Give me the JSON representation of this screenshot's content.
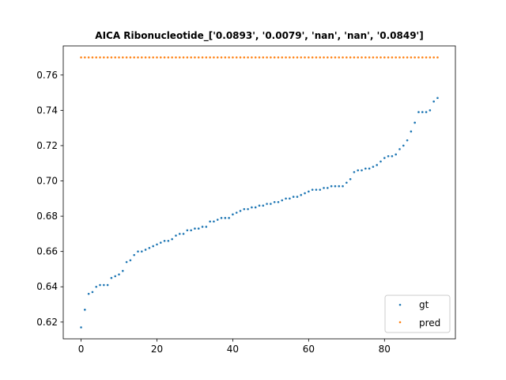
{
  "chart_data": {
    "type": "scatter",
    "title": "AICA Ribonucleotide_['0.0893', '0.0079', 'nan', 'nan', '0.0849']",
    "xlabel": "",
    "ylabel": "",
    "xlim": [
      -4.7,
      98.7
    ],
    "ylim": [
      0.6105,
      0.7765
    ],
    "x_ticks": [
      0,
      20,
      40,
      60,
      80
    ],
    "y_ticks": [
      0.62,
      0.64,
      0.66,
      0.68,
      0.7,
      0.72,
      0.74,
      0.76
    ],
    "grid": false,
    "legend_position": "lower-right",
    "x": [
      0,
      1,
      2,
      3,
      4,
      5,
      6,
      7,
      8,
      9,
      10,
      11,
      12,
      13,
      14,
      15,
      16,
      17,
      18,
      19,
      20,
      21,
      22,
      23,
      24,
      25,
      26,
      27,
      28,
      29,
      30,
      31,
      32,
      33,
      34,
      35,
      36,
      37,
      38,
      39,
      40,
      41,
      42,
      43,
      44,
      45,
      46,
      47,
      48,
      49,
      50,
      51,
      52,
      53,
      54,
      55,
      56,
      57,
      58,
      59,
      60,
      61,
      62,
      63,
      64,
      65,
      66,
      67,
      68,
      69,
      70,
      71,
      72,
      73,
      74,
      75,
      76,
      77,
      78,
      79,
      80,
      81,
      82,
      83,
      84,
      85,
      86,
      87,
      88,
      89,
      90,
      91,
      92,
      93,
      94
    ],
    "series": [
      {
        "name": "gt",
        "color": "#1f77b4",
        "values": [
          0.617,
          0.627,
          0.636,
          0.637,
          0.64,
          0.641,
          0.641,
          0.641,
          0.645,
          0.646,
          0.647,
          0.649,
          0.654,
          0.655,
          0.658,
          0.66,
          0.66,
          0.661,
          0.662,
          0.663,
          0.664,
          0.665,
          0.666,
          0.666,
          0.667,
          0.669,
          0.67,
          0.67,
          0.672,
          0.672,
          0.673,
          0.673,
          0.674,
          0.674,
          0.677,
          0.677,
          0.678,
          0.679,
          0.679,
          0.679,
          0.681,
          0.682,
          0.683,
          0.684,
          0.684,
          0.685,
          0.685,
          0.686,
          0.686,
          0.687,
          0.687,
          0.688,
          0.688,
          0.689,
          0.69,
          0.69,
          0.691,
          0.691,
          0.692,
          0.693,
          0.694,
          0.695,
          0.695,
          0.695,
          0.696,
          0.696,
          0.697,
          0.697,
          0.697,
          0.697,
          0.699,
          0.701,
          0.705,
          0.706,
          0.706,
          0.707,
          0.707,
          0.708,
          0.709,
          0.711,
          0.713,
          0.714,
          0.714,
          0.715,
          0.718,
          0.72,
          0.723,
          0.728,
          0.733,
          0.739,
          0.739,
          0.739,
          0.74,
          0.745,
          0.747
        ]
      },
      {
        "name": "pred",
        "color": "#ff7f0e",
        "constant": 0.77
      }
    ]
  }
}
